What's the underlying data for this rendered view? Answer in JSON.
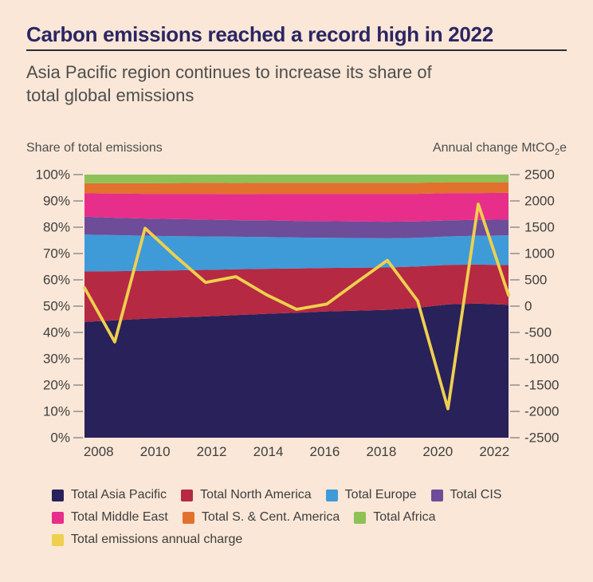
{
  "header": {
    "title": "Carbon emissions reached a record high in 2022",
    "subtitle_line1": "Asia Pacific region continues to increase its share of",
    "subtitle_line2": "total global emissions"
  },
  "axes": {
    "left_caption": "Share of total emissions",
    "right_caption_prefix": "Annual change MtCO",
    "right_caption_sub": "2",
    "right_caption_suffix": "e"
  },
  "chart_data": {
    "type": "area",
    "stacking": "percent-stacked areas with overlaid line on right axis",
    "x": [
      2008,
      2009,
      2010,
      2011,
      2012,
      2013,
      2014,
      2015,
      2016,
      2017,
      2018,
      2019,
      2020,
      2021,
      2022
    ],
    "x_tick_labels": [
      "2008",
      "2010",
      "2012",
      "2014",
      "2016",
      "2018",
      "2020",
      "2022"
    ],
    "y_left": {
      "label": "Share of total emissions",
      "min": 0,
      "max": 100,
      "step": 10,
      "suffix": "%"
    },
    "y_right": {
      "label": "Annual change MtCO2e",
      "min": -2500,
      "max": 2500,
      "step": 500
    },
    "grid": false,
    "legend_position": "bottom",
    "series": [
      {
        "name": "Total Asia Pacific",
        "color": "#29215a",
        "values": [
          44.0,
          44.6,
          45.2,
          45.7,
          46.1,
          46.6,
          47.1,
          47.5,
          48.0,
          48.3,
          48.6,
          49.4,
          50.7,
          51.0,
          50.5
        ]
      },
      {
        "name": "Total North America",
        "color": "#b52942",
        "values": [
          19.2,
          18.7,
          18.2,
          17.9,
          17.7,
          17.4,
          17.1,
          16.8,
          16.5,
          16.3,
          16.1,
          15.7,
          15.0,
          14.8,
          15.1
        ]
      },
      {
        "name": "Total Europe",
        "color": "#3f9ad8",
        "values": [
          14.0,
          13.7,
          13.4,
          13.0,
          12.7,
          12.4,
          12.1,
          11.8,
          11.5,
          11.3,
          11.1,
          10.9,
          10.8,
          11.0,
          11.3
        ]
      },
      {
        "name": "Total CIS",
        "color": "#6d4c9a",
        "values": [
          6.8,
          6.6,
          6.5,
          6.5,
          6.4,
          6.3,
          6.3,
          6.3,
          6.3,
          6.3,
          6.3,
          6.2,
          6.1,
          6.0,
          6.0
        ]
      },
      {
        "name": "Total Middle East",
        "color": "#e72e8a",
        "values": [
          8.9,
          9.2,
          9.4,
          9.6,
          9.8,
          9.9,
          10.1,
          10.3,
          10.4,
          10.5,
          10.6,
          10.5,
          10.4,
          10.2,
          10.2
        ]
      },
      {
        "name": "Total S. & Cent. America",
        "color": "#e2712e",
        "values": [
          3.8,
          3.9,
          4.0,
          4.1,
          4.2,
          4.2,
          4.2,
          4.2,
          4.2,
          4.2,
          4.2,
          4.2,
          4.1,
          4.1,
          4.0
        ]
      },
      {
        "name": "Total Africa",
        "color": "#8ec156",
        "values": [
          3.3,
          3.3,
          3.3,
          3.2,
          3.1,
          3.2,
          3.1,
          3.1,
          3.1,
          3.1,
          3.1,
          3.1,
          2.9,
          2.9,
          2.9
        ]
      }
    ],
    "line_series": {
      "name": "Total emissions annual charge",
      "color": "#eed04e",
      "axis": "right",
      "values": [
        350,
        -680,
        1480,
        950,
        450,
        560,
        220,
        -60,
        40,
        460,
        870,
        100,
        -1950,
        1940,
        210
      ]
    }
  },
  "legend": {
    "rows": [
      [
        {
          "label": "Total Asia Pacific",
          "color": "#29215a"
        },
        {
          "label": "Total North America",
          "color": "#b52942"
        },
        {
          "label": "Total Europe",
          "color": "#3f9ad8"
        },
        {
          "label": "Total CIS",
          "color": "#6d4c9a"
        }
      ],
      [
        {
          "label": "Total Middle East",
          "color": "#e72e8a"
        },
        {
          "label": "Total S. & Cent. America",
          "color": "#e2712e"
        },
        {
          "label": "Total Africa",
          "color": "#8ec156"
        }
      ],
      [
        {
          "label": "Total emissions annual charge",
          "color": "#eed04e"
        }
      ]
    ]
  },
  "colors": {
    "background": "#fae7d7",
    "title": "#2b2663",
    "rule": "#2e2c33",
    "text": "#4e4e4e",
    "tick_text": "#3f3f3f",
    "tick_line": "#8f8f8f"
  }
}
